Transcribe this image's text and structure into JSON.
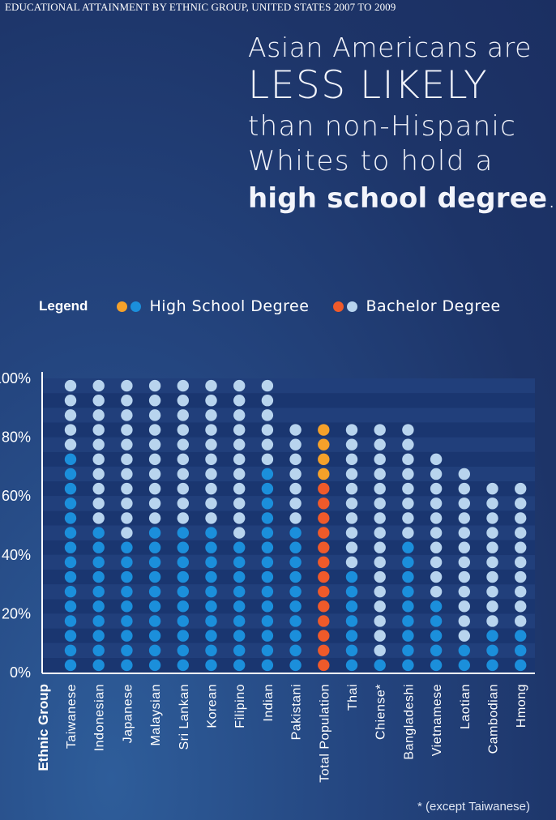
{
  "header": {
    "top_title": "EDUCATIONAL ATTAINMENT BY ETHNIC GROUP, UNITED STATES 2007 TO 2009",
    "line1": "Asian Americans are",
    "line2": "LESS LIKELY",
    "line3": "than non-Hispanic",
    "line4": "Whites to hold a",
    "line5_bold": "high school degree",
    "line5_end": "."
  },
  "legend": {
    "title": "Legend",
    "high_school_label": "High School Degree",
    "bachelor_label": "Bachelor Degree"
  },
  "colors": {
    "high_school_orange": "#f5a12a",
    "high_school_blue": "#1b8fdb",
    "bachelor_red": "#ef5a2a",
    "bachelor_light": "#b8d4ee",
    "band_dark": "#1a3670",
    "band_light": "#213f7b"
  },
  "footnote": "* (except Taiwanese)",
  "chart_data": {
    "type": "dot-matrix",
    "title": "",
    "xlabel": "Ethnic Group",
    "ylabel": "",
    "ylim": [
      0,
      100
    ],
    "yticks": [
      "0%",
      "20%",
      "40%",
      "60%",
      "80%",
      "100%"
    ],
    "ytick_values": [
      0,
      20,
      40,
      60,
      80,
      100
    ],
    "categories": [
      "Taiwanese",
      "Indonesian",
      "Japanese",
      "Malaysian",
      "Sri Lankan",
      "Korean",
      "Filipino",
      "Indian",
      "Pakistani",
      "Total Population",
      "Thai",
      "Chiense*",
      "Bangladeshi",
      "Vietnamese",
      "Laotian",
      "Cambodian",
      "Hmong"
    ],
    "series": [
      {
        "name": "High School Degree",
        "values": [
          100,
          100,
          100,
          100,
          100,
          100,
          100,
          100,
          85,
          85,
          85,
          85,
          85,
          75,
          70,
          65,
          65
        ]
      },
      {
        "name": "Bachelor Degree",
        "values": [
          75,
          50,
          45,
          50,
          50,
          50,
          45,
          70,
          50,
          65,
          35,
          5,
          45,
          25,
          10,
          15,
          15
        ]
      }
    ]
  }
}
